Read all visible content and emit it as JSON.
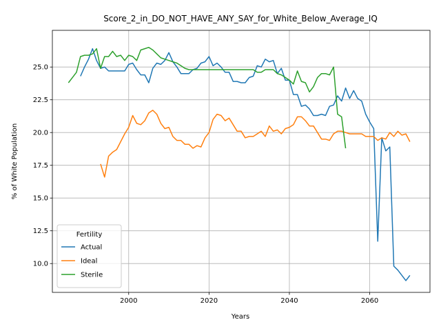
{
  "chart_data": {
    "type": "line",
    "title": "Score_2_in_DO_NOT_HAVE_ANY_SAY_for_White_Below_Average_IQ",
    "xlabel": "Years",
    "ylabel": "% of White Population",
    "xlim": [
      1981,
      2075
    ],
    "ylim": [
      7.8,
      27.8
    ],
    "xticks": [
      2000,
      2020,
      2040,
      2060
    ],
    "yticks": [
      10.0,
      12.5,
      15.0,
      17.5,
      20.0,
      22.5,
      25.0
    ],
    "grid": true,
    "legend": {
      "title": "Fertility",
      "placement": "lower-left"
    },
    "series": [
      {
        "name": "Actual",
        "color": "#1f77b4",
        "x": [
          1988,
          1989,
          1990,
          1991,
          1992,
          1993,
          1994,
          1995,
          1996,
          1997,
          1998,
          1999,
          2000,
          2001,
          2002,
          2003,
          2004,
          2005,
          2006,
          2007,
          2008,
          2009,
          2010,
          2011,
          2012,
          2013,
          2014,
          2015,
          2016,
          2017,
          2018,
          2019,
          2020,
          2021,
          2022,
          2023,
          2024,
          2025,
          2026,
          2027,
          2028,
          2029,
          2030,
          2031,
          2032,
          2033,
          2034,
          2035,
          2036,
          2037,
          2038,
          2039,
          2040,
          2041,
          2042,
          2043,
          2044,
          2045,
          2046,
          2047,
          2048,
          2049,
          2050,
          2051,
          2052,
          2053,
          2054,
          2055,
          2056,
          2057,
          2058,
          2059,
          2060,
          2061,
          2062,
          2063,
          2064,
          2065,
          2066,
          2067,
          2068,
          2069,
          2070
        ],
        "values": [
          24.3,
          25.0,
          25.6,
          26.4,
          25.5,
          24.9,
          25.0,
          24.7,
          24.7,
          24.7,
          24.7,
          24.7,
          25.2,
          25.3,
          24.8,
          24.4,
          24.4,
          23.8,
          24.9,
          25.3,
          25.2,
          25.5,
          26.1,
          25.4,
          25.0,
          24.5,
          24.5,
          24.5,
          24.8,
          24.9,
          25.3,
          25.4,
          25.8,
          25.1,
          25.3,
          25.0,
          24.6,
          24.6,
          23.9,
          23.9,
          23.8,
          23.8,
          24.2,
          24.3,
          25.1,
          25.0,
          25.6,
          25.4,
          25.5,
          24.5,
          24.9,
          24.0,
          24.0,
          22.9,
          22.9,
          22.0,
          22.1,
          21.8,
          21.3,
          21.3,
          21.4,
          21.3,
          22.0,
          22.1,
          22.8,
          22.4,
          23.4,
          22.6,
          23.2,
          22.6,
          22.4,
          21.4,
          20.8,
          20.3,
          11.7,
          19.6,
          18.6,
          18.9,
          9.8,
          9.5,
          9.1,
          8.7,
          9.1
        ]
      },
      {
        "name": "Ideal",
        "color": "#ff7f0e",
        "x": [
          1993,
          1994,
          1995,
          1996,
          1997,
          1998,
          1999,
          2000,
          2001,
          2002,
          2003,
          2004,
          2005,
          2006,
          2007,
          2008,
          2009,
          2010,
          2011,
          2012,
          2013,
          2014,
          2015,
          2016,
          2017,
          2018,
          2019,
          2020,
          2021,
          2022,
          2023,
          2024,
          2025,
          2026,
          2027,
          2028,
          2029,
          2030,
          2031,
          2032,
          2033,
          2034,
          2035,
          2036,
          2037,
          2038,
          2039,
          2040,
          2041,
          2042,
          2043,
          2044,
          2045,
          2046,
          2047,
          2048,
          2049,
          2050,
          2051,
          2052,
          2053,
          2054,
          2055,
          2056,
          2057,
          2058,
          2059,
          2060,
          2061,
          2062,
          2063,
          2064,
          2065,
          2066,
          2067,
          2068,
          2069,
          2070
        ],
        "values": [
          17.6,
          16.6,
          18.2,
          18.5,
          18.7,
          19.3,
          19.9,
          20.4,
          21.3,
          20.7,
          20.6,
          20.9,
          21.5,
          21.7,
          21.4,
          20.7,
          20.3,
          20.4,
          19.7,
          19.4,
          19.4,
          19.1,
          19.1,
          18.8,
          19.0,
          18.9,
          19.6,
          20.0,
          21.0,
          21.4,
          21.3,
          20.9,
          21.1,
          20.6,
          20.1,
          20.1,
          19.6,
          19.7,
          19.7,
          19.9,
          20.1,
          19.7,
          20.5,
          20.1,
          20.2,
          19.9,
          20.3,
          20.4,
          20.6,
          21.2,
          21.2,
          20.9,
          20.5,
          20.5,
          20.0,
          19.5,
          19.5,
          19.4,
          19.9,
          20.1,
          20.1,
          20.0,
          19.9,
          19.9,
          19.9,
          19.9,
          19.7,
          19.7,
          19.7,
          19.4,
          19.6,
          19.5,
          20.0,
          19.7,
          20.1,
          19.8,
          19.9,
          19.3
        ]
      },
      {
        "name": "Sterile",
        "color": "#2ca02c",
        "x": [
          1985,
          1986,
          1987,
          1988,
          1989,
          1990,
          1991,
          1992,
          1993,
          1994,
          1995,
          1996,
          1997,
          1998,
          1999,
          2000,
          2001,
          2002,
          2003,
          2004,
          2005,
          2006,
          2007,
          2008,
          2009,
          2010,
          2011,
          2012,
          2013,
          2014,
          2015,
          2016,
          2017,
          2018,
          2019,
          2020,
          2021,
          2022,
          2023,
          2024,
          2025,
          2026,
          2027,
          2028,
          2029,
          2030,
          2031,
          2032,
          2033,
          2034,
          2035,
          2036,
          2037,
          2038,
          2039,
          2040,
          2041,
          2042,
          2043,
          2044,
          2045,
          2046,
          2047,
          2048,
          2049,
          2050,
          2051,
          2052,
          2053,
          2054
        ],
        "values": [
          23.8,
          24.2,
          24.6,
          25.8,
          25.9,
          25.9,
          26.0,
          26.4,
          24.9,
          25.8,
          25.8,
          26.2,
          25.8,
          25.9,
          25.5,
          25.9,
          25.8,
          25.5,
          26.3,
          26.4,
          26.5,
          26.3,
          26.0,
          25.7,
          25.6,
          25.5,
          25.4,
          25.3,
          25.1,
          24.9,
          24.8,
          24.8,
          24.8,
          24.8,
          24.8,
          24.8,
          24.8,
          24.8,
          24.8,
          24.8,
          24.8,
          24.8,
          24.8,
          24.8,
          24.8,
          24.8,
          24.8,
          24.6,
          24.6,
          24.8,
          24.8,
          24.8,
          24.5,
          24.4,
          24.2,
          24.0,
          23.7,
          24.7,
          23.9,
          23.8,
          23.1,
          23.5,
          24.2,
          24.5,
          24.5,
          24.4,
          25.0,
          21.4,
          21.2,
          18.8
        ]
      }
    ]
  }
}
